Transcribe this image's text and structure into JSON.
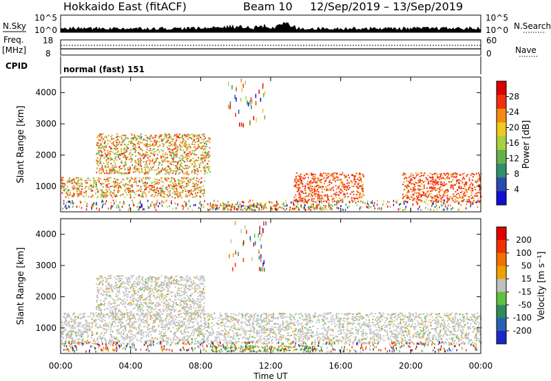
{
  "header": {
    "station": "Hokkaido East (fitACF)",
    "beam": "Beam 10",
    "dates": "12/Sep/2019 – 13/Sep/2019"
  },
  "status_panels": {
    "nsky_label": "N.Sky",
    "nsearch_label": "N.Search",
    "noise_ticks": [
      "10^5",
      "10^0"
    ],
    "freq_label": "Freq.",
    "freq_unit": "[MHz]",
    "freq_ticks": [
      "18",
      "8"
    ],
    "nave_label": "Nave",
    "nave_ticks": [
      "60",
      "0"
    ],
    "cpid_label": "CPID",
    "cpid_value": "normal (fast) 151"
  },
  "chart_data": [
    {
      "type": "heatmap",
      "panel": "power",
      "ylabel": "Slant Range [km]",
      "y_ticks": [
        1000,
        2000,
        3000,
        4000
      ],
      "ylim": [
        180,
        4500
      ],
      "x_ticks": [
        "00:00",
        "04:00",
        "08:00",
        "12:00",
        "16:00",
        "20:00",
        "00:00"
      ],
      "xlim_hours": [
        0,
        24
      ],
      "colorbar": {
        "label": "Power [dB]",
        "ticks": [
          "4",
          "8",
          "12",
          "16",
          "20",
          "24",
          "28"
        ],
        "range": [
          0,
          32
        ],
        "colors": [
          "#1010d0",
          "#2a4cb0",
          "#2f8f6a",
          "#67b04a",
          "#a8d040",
          "#f0c820",
          "#f58a10",
          "#f03010",
          "#d80000"
        ]
      },
      "regions": [
        {
          "t": [
            0,
            8.2
          ],
          "range_km": [
            650,
            1300
          ],
          "level": "16-28 dB"
        },
        {
          "t": [
            2,
            8.5
          ],
          "range_km": [
            1400,
            2700
          ],
          "level": "16-28 dB"
        },
        {
          "t": [
            13.3,
            17.3
          ],
          "range_km": [
            500,
            1450
          ],
          "level": "24-32 dB"
        },
        {
          "t": [
            19.5,
            24
          ],
          "range_km": [
            500,
            1450
          ],
          "level": "20-32 dB"
        },
        {
          "t": [
            8.5,
            15.5
          ],
          "range_km": [
            250,
            450
          ],
          "level": "20-28 dB"
        }
      ]
    },
    {
      "type": "heatmap",
      "panel": "velocity",
      "ylabel": "Slant Range [km]",
      "y_ticks": [
        1000,
        2000,
        3000,
        4000
      ],
      "ylim": [
        180,
        4500
      ],
      "x_ticks": [
        "00:00",
        "04:00",
        "08:00",
        "12:00",
        "16:00",
        "20:00",
        "00:00"
      ],
      "xlabel": "Time UT",
      "xlim_hours": [
        0,
        24
      ],
      "colorbar": {
        "label": "Velocity [m s⁻¹]",
        "ticks": [
          "200",
          "100",
          "50",
          "15",
          "-15",
          "-50",
          "-100",
          "-200"
        ],
        "colors": [
          "#1a28c8",
          "#2a60b0",
          "#2e8c5a",
          "#60c040",
          "#c0c0c0",
          "#f0a000",
          "#f07000",
          "#f03000",
          "#e00000"
        ]
      },
      "regions": [
        {
          "t": [
            0,
            24
          ],
          "range_km": [
            500,
            1500
          ],
          "level": "ground scatter (±15)"
        },
        {
          "t": [
            8.5,
            15
          ],
          "range_km": [
            250,
            450
          ],
          "level": "15-100"
        },
        {
          "t": [
            2,
            8.2
          ],
          "range_km": [
            1400,
            2700
          ],
          "level": "ground scatter (±15)"
        }
      ]
    }
  ]
}
